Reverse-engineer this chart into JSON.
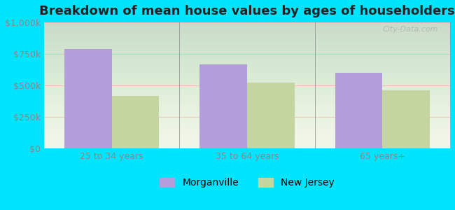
{
  "title": "Breakdown of mean house values by ages of householders",
  "categories": [
    "25 to 34 years",
    "35 to 64 years",
    "65 years+"
  ],
  "morganville_values": [
    790000,
    670000,
    600000
  ],
  "nj_values": [
    415000,
    525000,
    460000
  ],
  "morganville_color": "#b39ddb",
  "nj_color": "#c5d5a0",
  "background_color": "#00e5ff",
  "plot_bg_gradient_top": "#f0f5e8",
  "plot_bg_gradient_bottom": "#ffffff",
  "ylim": [
    0,
    1000000
  ],
  "yticks": [
    0,
    250000,
    500000,
    750000,
    1000000
  ],
  "ytick_labels": [
    "$0",
    "$250k",
    "$500k",
    "$750k",
    "$1,000k"
  ],
  "legend_labels": [
    "Morganville",
    "New Jersey"
  ],
  "bar_width": 0.35,
  "title_fontsize": 13,
  "tick_fontsize": 9,
  "legend_fontsize": 10,
  "watermark_text": "City-Data.com"
}
